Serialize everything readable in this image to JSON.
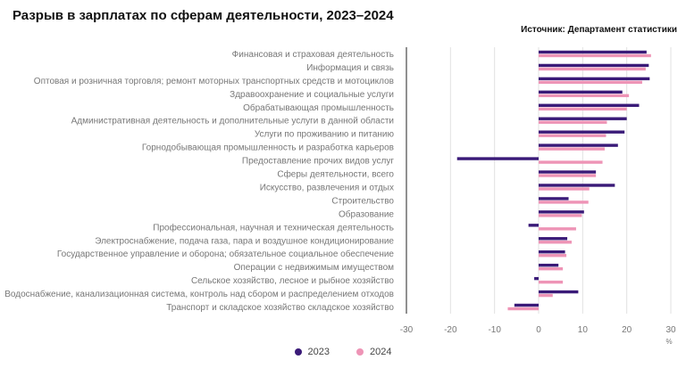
{
  "header": {
    "title": "Разрыв в зарплатах по сферам деятельности, 2023–2024",
    "source": "Источник: Департамент статистики"
  },
  "chart_data": {
    "type": "bar",
    "orientation": "horizontal",
    "title": "Разрыв в зарплатах по сферам деятельности, 2023–2024",
    "xlabel": "%",
    "ylabel": "",
    "xlim": [
      -30,
      30
    ],
    "xticks": [
      -30,
      -20,
      -10,
      0,
      10,
      20,
      30
    ],
    "grid": true,
    "legend_position": "bottom",
    "categories": [
      "Финансовая и страховая деятельность",
      "Информация и связь",
      "Оптовая и розничная торговля; ремонт моторных транспортных средств и мотоциклов",
      "Здравоохранение и социальные услуги",
      "Обрабатывающая промышленность",
      "Административная деятельность и дополнительные услуги в данной области",
      "Услуги по проживанию и питанию",
      "Горнодобывающая промышленность и разработка карьеров",
      "Предоставление прочих видов услуг",
      "Сферы деятельности, всего",
      "Искусство, развлечения и отдых",
      "Строительство",
      "Образование",
      "Профессиональная, научная и техническая деятельность",
      "Электроснабжение, подача газа, пара и воздушное кондиционирование",
      "Государственное управление и оборона; обязательное социальное обеспечение",
      "Операции с недвижимым имуществом",
      "Сельское хозяйство, лесное и рыбное хозяйство",
      "Водоснабжение, канализационная система, контроль над сбором и распределением отходов",
      "Транспорт и складское хозяйство складское хозяйство"
    ],
    "series": [
      {
        "name": "2023",
        "color": "#3a1a78",
        "values": [
          24.5,
          25.0,
          25.2,
          19.0,
          22.8,
          20.0,
          19.5,
          18.0,
          -18.5,
          13.0,
          17.3,
          6.8,
          10.3,
          -2.3,
          6.5,
          6.0,
          4.5,
          -1.0,
          9.0,
          -5.5
        ]
      },
      {
        "name": "2024",
        "color": "#ee94b6",
        "values": [
          25.5,
          24.3,
          23.5,
          20.5,
          20.0,
          15.5,
          15.3,
          15.0,
          14.5,
          13.0,
          11.5,
          11.3,
          9.8,
          8.5,
          7.5,
          6.3,
          5.5,
          5.5,
          3.2,
          -7.0
        ]
      }
    ]
  }
}
